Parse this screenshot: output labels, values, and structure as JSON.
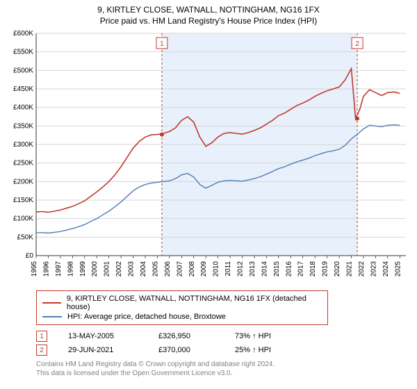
{
  "title_line1": "9, KIRTLEY CLOSE, WATNALL, NOTTINGHAM, NG16 1FX",
  "title_line2": "Price paid vs. HM Land Registry's House Price Index (HPI)",
  "chart": {
    "type": "line",
    "background_color": "#ffffff",
    "grid_color": "#d6d6d6",
    "shade_color": "#e8f0fb",
    "y": {
      "min": 0,
      "max": 600000,
      "ticks": [
        0,
        50000,
        100000,
        150000,
        200000,
        250000,
        300000,
        350000,
        400000,
        450000,
        500000,
        550000,
        600000
      ],
      "labels": [
        "£0",
        "£50K",
        "£100K",
        "£150K",
        "£200K",
        "£250K",
        "£300K",
        "£350K",
        "£400K",
        "£450K",
        "£500K",
        "£550K",
        "£600K"
      ],
      "label_fontsize": 10
    },
    "x": {
      "min": 1995,
      "max": 2025.5,
      "ticks": [
        1995,
        1996,
        1997,
        1998,
        1999,
        2000,
        2001,
        2002,
        2003,
        2004,
        2005,
        2006,
        2007,
        2008,
        2009,
        2010,
        2011,
        2012,
        2013,
        2014,
        2015,
        2016,
        2017,
        2018,
        2019,
        2020,
        2021,
        2022,
        2023,
        2024,
        2025
      ],
      "label_fontsize": 10
    },
    "series": [
      {
        "name": "property",
        "color": "#c0392b",
        "width": 1.6,
        "data": [
          [
            1995,
            118000
          ],
          [
            1995.5,
            119000
          ],
          [
            1996,
            117000
          ],
          [
            1996.5,
            120000
          ],
          [
            1997,
            123000
          ],
          [
            1997.5,
            128000
          ],
          [
            1998,
            133000
          ],
          [
            1998.5,
            140000
          ],
          [
            1999,
            148000
          ],
          [
            1999.5,
            160000
          ],
          [
            2000,
            172000
          ],
          [
            2000.5,
            185000
          ],
          [
            2001,
            200000
          ],
          [
            2001.5,
            218000
          ],
          [
            2002,
            240000
          ],
          [
            2002.5,
            265000
          ],
          [
            2003,
            290000
          ],
          [
            2003.5,
            308000
          ],
          [
            2004,
            320000
          ],
          [
            2004.5,
            326000
          ],
          [
            2005,
            326950
          ],
          [
            2005.5,
            330000
          ],
          [
            2006,
            335000
          ],
          [
            2006.5,
            345000
          ],
          [
            2007,
            365000
          ],
          [
            2007.5,
            375000
          ],
          [
            2008,
            360000
          ],
          [
            2008.5,
            320000
          ],
          [
            2009,
            295000
          ],
          [
            2009.5,
            305000
          ],
          [
            2010,
            320000
          ],
          [
            2010.5,
            330000
          ],
          [
            2011,
            332000
          ],
          [
            2011.5,
            330000
          ],
          [
            2012,
            328000
          ],
          [
            2012.5,
            332000
          ],
          [
            2013,
            338000
          ],
          [
            2013.5,
            345000
          ],
          [
            2014,
            355000
          ],
          [
            2014.5,
            365000
          ],
          [
            2015,
            378000
          ],
          [
            2015.5,
            385000
          ],
          [
            2016,
            395000
          ],
          [
            2016.5,
            405000
          ],
          [
            2017,
            412000
          ],
          [
            2017.5,
            420000
          ],
          [
            2018,
            430000
          ],
          [
            2018.5,
            438000
          ],
          [
            2019,
            445000
          ],
          [
            2019.5,
            450000
          ],
          [
            2020,
            455000
          ],
          [
            2020.5,
            475000
          ],
          [
            2021,
            505000
          ],
          [
            2021.35,
            370000
          ],
          [
            2021.7,
            395000
          ],
          [
            2022,
            430000
          ],
          [
            2022.5,
            448000
          ],
          [
            2023,
            440000
          ],
          [
            2023.5,
            432000
          ],
          [
            2024,
            440000
          ],
          [
            2024.5,
            442000
          ],
          [
            2025,
            438000
          ]
        ]
      },
      {
        "name": "hpi",
        "color": "#4f7cb5",
        "width": 1.4,
        "data": [
          [
            1995,
            62000
          ],
          [
            1995.5,
            62000
          ],
          [
            1996,
            61000
          ],
          [
            1996.5,
            63000
          ],
          [
            1997,
            65000
          ],
          [
            1997.5,
            69000
          ],
          [
            1998,
            73000
          ],
          [
            1998.5,
            78000
          ],
          [
            1999,
            84000
          ],
          [
            1999.5,
            92000
          ],
          [
            2000,
            100000
          ],
          [
            2000.5,
            110000
          ],
          [
            2001,
            120000
          ],
          [
            2001.5,
            132000
          ],
          [
            2002,
            145000
          ],
          [
            2002.5,
            160000
          ],
          [
            2003,
            175000
          ],
          [
            2003.5,
            185000
          ],
          [
            2004,
            192000
          ],
          [
            2004.5,
            196000
          ],
          [
            2005,
            198000
          ],
          [
            2005.5,
            200000
          ],
          [
            2006,
            202000
          ],
          [
            2006.5,
            208000
          ],
          [
            2007,
            218000
          ],
          [
            2007.5,
            222000
          ],
          [
            2008,
            212000
          ],
          [
            2008.5,
            192000
          ],
          [
            2009,
            182000
          ],
          [
            2009.5,
            190000
          ],
          [
            2010,
            198000
          ],
          [
            2010.5,
            202000
          ],
          [
            2011,
            203000
          ],
          [
            2011.5,
            202000
          ],
          [
            2012,
            201000
          ],
          [
            2012.5,
            204000
          ],
          [
            2013,
            208000
          ],
          [
            2013.5,
            213000
          ],
          [
            2014,
            220000
          ],
          [
            2014.5,
            227000
          ],
          [
            2015,
            235000
          ],
          [
            2015.5,
            240000
          ],
          [
            2016,
            247000
          ],
          [
            2016.5,
            253000
          ],
          [
            2017,
            258000
          ],
          [
            2017.5,
            263000
          ],
          [
            2018,
            270000
          ],
          [
            2018.5,
            275000
          ],
          [
            2019,
            280000
          ],
          [
            2019.5,
            283000
          ],
          [
            2020,
            287000
          ],
          [
            2020.5,
            298000
          ],
          [
            2021,
            315000
          ],
          [
            2021.5,
            328000
          ],
          [
            2022,
            342000
          ],
          [
            2022.5,
            352000
          ],
          [
            2023,
            350000
          ],
          [
            2023.5,
            348000
          ],
          [
            2024,
            352000
          ],
          [
            2024.5,
            353000
          ],
          [
            2025,
            352000
          ]
        ]
      }
    ],
    "markers": [
      {
        "n": "1",
        "x": 2005.37,
        "y": 326950
      },
      {
        "n": "2",
        "x": 2021.49,
        "y": 370000
      }
    ],
    "marker_line_color": "#c0392b",
    "marker_box_border": "#c0392b",
    "marker_text_color": "#c0392b"
  },
  "legend": {
    "items": [
      {
        "color": "#c0392b",
        "label": "9, KIRTLEY CLOSE, WATNALL, NOTTINGHAM, NG16 1FX (detached house)"
      },
      {
        "color": "#4f7cb5",
        "label": "HPI: Average price, detached house, Broxtowe"
      }
    ]
  },
  "sales": [
    {
      "n": "1",
      "date": "13-MAY-2005",
      "price": "£326,950",
      "delta": "73% ↑ HPI"
    },
    {
      "n": "2",
      "date": "29-JUN-2021",
      "price": "£370,000",
      "delta": "25% ↑ HPI"
    }
  ],
  "footer": {
    "l1": "Contains HM Land Registry data © Crown copyright and database right 2024.",
    "l2": "This data is licensed under the Open Government Licence v3.0."
  }
}
